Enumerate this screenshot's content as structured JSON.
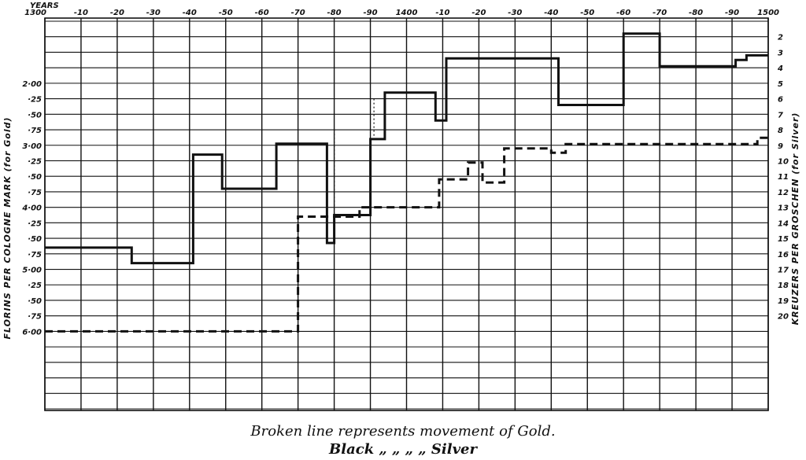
{
  "chart_data": {
    "type": "line",
    "years_label": "YEARS",
    "x_ticks": [
      "1300",
      "-10",
      "-20",
      "-30",
      "-40",
      "-50",
      "-60",
      "-70",
      "-80",
      "-90",
      "1400",
      "-10",
      "-20",
      "-30",
      "-40",
      "-50",
      "-60",
      "-70",
      "-80",
      "-90",
      "1500"
    ],
    "xlim": [
      1300,
      1500
    ],
    "left_axis": {
      "label": "FLORINS PER COLOGNE MARK  (for Gold)",
      "ticks": [
        "2·00",
        "·25",
        "·50",
        "·75",
        "3·00",
        "·25",
        "·50",
        "·75",
        "4·00",
        "·25",
        "·50",
        "·75",
        "5·00",
        "·25",
        "·50",
        "·75",
        "6·00"
      ],
      "ylim_top": 1.0,
      "ylim_bottom": 6.0
    },
    "right_axis": {
      "label": "KREUZERS PER GROSCHEN  (for Silver)",
      "ticks": [
        "2",
        "3",
        "4",
        "5",
        "6",
        "7",
        "8",
        "9",
        "10",
        "11",
        "12",
        "13",
        "14",
        "15",
        "16",
        "17",
        "18",
        "19",
        "20"
      ]
    },
    "series": [
      {
        "name": "Gold",
        "style": "dashed",
        "points": [
          [
            1300,
            6.0
          ],
          [
            1370,
            6.0
          ],
          [
            1370,
            4.15
          ],
          [
            1379,
            4.15
          ],
          [
            1379,
            4.15
          ],
          [
            1387,
            4.15
          ],
          [
            1387,
            4.0
          ],
          [
            1409,
            4.0
          ],
          [
            1409,
            3.55
          ],
          [
            1417,
            3.55
          ],
          [
            1417,
            3.28
          ],
          [
            1421,
            3.28
          ],
          [
            1421,
            3.6
          ],
          [
            1427,
            3.6
          ],
          [
            1427,
            3.05
          ],
          [
            1440,
            3.05
          ],
          [
            1440,
            3.12
          ],
          [
            1444,
            3.12
          ],
          [
            1444,
            2.98
          ],
          [
            1497,
            2.98
          ],
          [
            1497,
            2.88
          ],
          [
            1500,
            2.88
          ]
        ]
      },
      {
        "name": "Silver",
        "style": "solid",
        "points": [
          [
            1300,
            15.6
          ],
          [
            1324,
            15.6
          ],
          [
            1324,
            16.6
          ],
          [
            1341,
            16.6
          ],
          [
            1341,
            9.6
          ],
          [
            1349,
            9.6
          ],
          [
            1349,
            11.8
          ],
          [
            1364,
            11.8
          ],
          [
            1364,
            8.9
          ],
          [
            1378,
            8.9
          ],
          [
            1378,
            15.3
          ],
          [
            1380,
            15.3
          ],
          [
            1380,
            13.5
          ],
          [
            1390,
            13.5
          ],
          [
            1390,
            8.6
          ],
          [
            1394,
            8.6
          ],
          [
            1394,
            5.6
          ],
          [
            1408,
            5.6
          ],
          [
            1408,
            7.4
          ],
          [
            1411,
            7.4
          ],
          [
            1411,
            3.4
          ],
          [
            1442,
            3.4
          ],
          [
            1442,
            6.4
          ],
          [
            1460,
            6.4
          ],
          [
            1460,
            1.8
          ],
          [
            1470,
            1.8
          ],
          [
            1470,
            3.9
          ],
          [
            1491,
            3.9
          ],
          [
            1491,
            3.5
          ],
          [
            1494,
            3.5
          ],
          [
            1494,
            3.2
          ],
          [
            1500,
            3.2
          ]
        ]
      }
    ],
    "extra_dotted": [
      {
        "points": [
          [
            1380,
            8.0
          ],
          [
            1380,
            15.0
          ]
        ]
      },
      {
        "points": [
          [
            1391,
            6.0
          ],
          [
            1391,
            8.5
          ]
        ]
      }
    ]
  },
  "caption": {
    "line1": "Broken line represents movement of Gold.",
    "line2": "Black  „         „          „          „   Silver"
  }
}
